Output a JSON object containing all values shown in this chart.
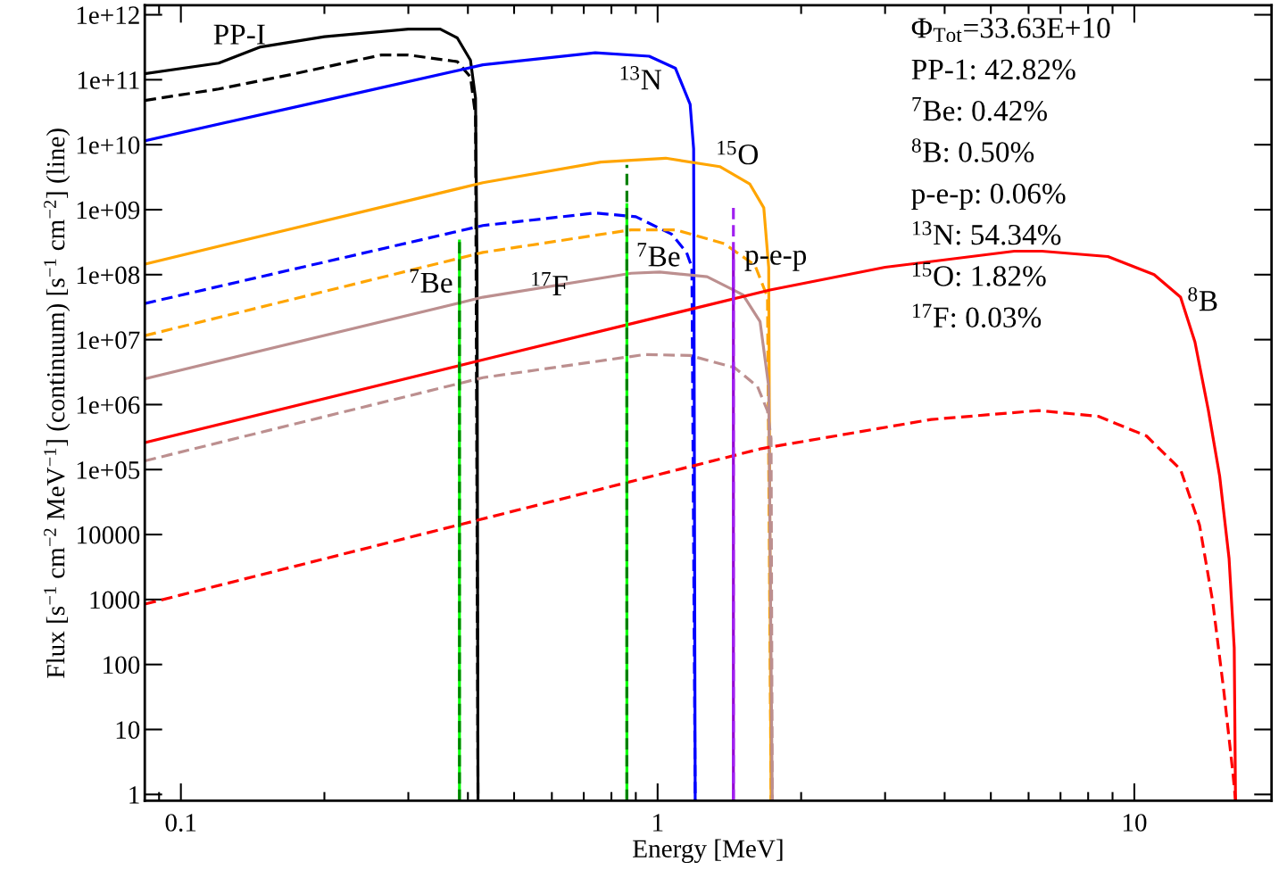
{
  "chart_data": {
    "type": "line",
    "log": "xy",
    "grid": false,
    "legend": false,
    "xlabel": "Energy [MeV]",
    "ylabel": "Flux [s$^{−1}$ cm$^{−2}$ MeV$^{−1}$] (continuum) [s$^{−1}$ cm$^{−2}$] (line)",
    "xlim": [
      0.084,
      19.4
    ],
    "ylim": [
      0.8,
      1400000000000.0
    ],
    "xticks": [
      0.1,
      1,
      10
    ],
    "yticks": [
      1,
      10,
      100,
      1000,
      10000,
      {
        "value": 100000.0,
        "label": "1e+05"
      },
      {
        "value": 1000000.0,
        "label": "1e+06"
      },
      {
        "value": 10000000.0,
        "label": "1e+07"
      },
      {
        "value": 100000000.0,
        "label": "1e+08"
      },
      {
        "value": 1000000000.0,
        "label": "1e+09"
      },
      {
        "value": 10000000000.0,
        "label": "1e+10"
      },
      {
        "value": 100000000000.0,
        "label": "1e+11"
      },
      {
        "value": 1000000000000.0,
        "label": "1e+12"
      }
    ],
    "series": [
      {
        "color": "#000000",
        "line_style": "solid",
        "x": [
          0.084,
          0.12,
          0.147,
          0.2,
          0.3,
          0.35,
          0.38,
          0.405,
          0.415,
          0.418,
          0.42
        ],
        "values": [
          124000000000.0,
          180000000000.0,
          320000000000.0,
          460000000000.0,
          600000000000.0,
          600000000000.0,
          440000000000.0,
          200000000000.0,
          52000000000.0,
          130000000.0,
          0.8
        ]
      },
      {
        "color": "#000000",
        "line_style": "dashed",
        "x": [
          0.084,
          0.12,
          0.17,
          0.263,
          0.3,
          0.38,
          0.405,
          0.415,
          0.42
        ],
        "values": [
          48000000000.0,
          72000000000.0,
          120000000000.0,
          240000000000.0,
          240000000000.0,
          190000000000.0,
          110000000000.0,
          28000000000.0,
          0.8
        ]
      },
      {
        "color": "#0000ff",
        "line_style": "solid",
        "x": [
          0.084,
          0.2,
          0.43,
          0.74,
          0.96,
          1.09,
          1.17,
          1.19,
          1.199
        ],
        "values": [
          11500000000.0,
          48000000000.0,
          170000000000.0,
          260000000000.0,
          230000000000.0,
          150000000000.0,
          42000000000.0,
          8700000000.0,
          0.8
        ]
      },
      {
        "color": "#0000ff",
        "line_style": "dashed",
        "x": [
          0.084,
          0.43,
          0.74,
          0.9,
          1.07,
          1.15,
          1.18,
          1.199
        ],
        "values": [
          36000000.0,
          570000000.0,
          890000000.0,
          780000000.0,
          420000000.0,
          220000000.0,
          130000000.0,
          0.8
        ]
      },
      {
        "color": "#ffa500",
        "line_style": "solid",
        "x": [
          0.084,
          0.43,
          0.76,
          1.04,
          1.35,
          1.56,
          1.67,
          1.71,
          1.73
        ],
        "values": [
          145000000.0,
          2600000000.0,
          5400000000.0,
          6200000000.0,
          4600000000.0,
          2500000000.0,
          1070000000.0,
          130000000.0,
          0.8
        ]
      },
      {
        "color": "#ffa500",
        "line_style": "dashed",
        "x": [
          0.084,
          0.43,
          0.88,
          1.09,
          1.38,
          1.6,
          1.7,
          1.73
        ],
        "values": [
          11500000.0,
          220000000.0,
          490000000.0,
          490000000.0,
          300000000.0,
          140000000.0,
          45000000.0,
          0.8
        ]
      },
      {
        "color": "#bc8f8f",
        "line_style": "solid",
        "x": [
          0.084,
          0.43,
          0.88,
          1.01,
          1.27,
          1.51,
          1.64,
          1.71,
          1.74
        ],
        "values": [
          2500000.0,
          45000000.0,
          105000000.0,
          110000000.0,
          93000000.0,
          49000000.0,
          19000000.0,
          1900000.0,
          0.8
        ]
      },
      {
        "color": "#bc8f8f",
        "line_style": "dashed",
        "x": [
          0.084,
          0.43,
          0.94,
          1.17,
          1.45,
          1.62,
          1.7,
          1.73,
          1.74
        ],
        "values": [
          136000.0,
          2600000.0,
          5900000.0,
          5700000.0,
          3700000.0,
          1900000.0,
          800000.0,
          300000.0,
          0.8
        ]
      },
      {
        "color": "#ff0000",
        "line_style": "solid",
        "x": [
          0.084,
          0.43,
          1.72,
          3.0,
          5.6,
          6.4,
          8.8,
          11.0,
          12.5,
          13.4,
          14.3,
          15.1,
          15.8,
          16.2,
          16.3
        ],
        "values": [
          260000.0,
          4900000.0,
          58000000.0,
          130000000.0,
          230000000.0,
          230000000.0,
          190000000.0,
          100000000.0,
          45000000.0,
          9200000.0,
          810000.0,
          79000.0,
          4300.0,
          180,
          0.8
        ]
      },
      {
        "color": "#ff0000",
        "line_style": "dashed",
        "x": [
          0.084,
          1.65,
          3.75,
          6.3,
          8.4,
          10.6,
          12.5,
          13.7,
          14.6,
          15.4,
          16.1,
          16.3
        ],
        "values": [
          850,
          210000.0,
          590000.0,
          810000.0,
          660000.0,
          330000.0,
          100000.0,
          14000.0,
          930,
          40,
          2.1,
          0.8
        ]
      },
      {
        "color": "#00ff00",
        "line_style": "solid",
        "x": [
          0.384,
          0.384
        ],
        "values": [
          0.8,
          330000000.0
        ]
      },
      {
        "color": "#008000",
        "line_style": "dashed",
        "x": [
          0.384,
          0.384
        ],
        "values": [
          0.8,
          330000000.0
        ]
      },
      {
        "color": "#00ff00",
        "line_style": "solid",
        "x": [
          0.862,
          0.862
        ],
        "values": [
          0.8,
          1200000000.0
        ]
      },
      {
        "color": "#008000",
        "line_style": "dashed",
        "x": [
          0.862,
          0.862
        ],
        "values": [
          0.8,
          4900000000.0
        ]
      },
      {
        "color": "#9400d3",
        "line_style": "solid",
        "x": [
          1.442,
          1.442
        ],
        "values": [
          0.8,
          220000000.0
        ]
      },
      {
        "color": "#a020f0",
        "line_style": "dashed",
        "x": [
          1.442,
          1.442
        ],
        "values": [
          0.8,
          1140000000.0
        ]
      }
    ],
    "annotations": [
      "PP-I",
      "$^{13}$N",
      "$^{15}$O",
      "$^{7}$Be",
      "$^{17}$F",
      "$^{7}$Be",
      "p-e-p",
      "$^{8}$B",
      "Φ$_{Tot}$=33.63E+10",
      "PP-1: 42.82%",
      "$^{7}$Be: 0.42%",
      "$^{8}$B: 0.50%",
      "p-e-p: 0.06%",
      "$^{13}$N: 54.34%",
      "$^{15}$O: 1.82%",
      "$^{17}$F: 0.03%"
    ]
  }
}
